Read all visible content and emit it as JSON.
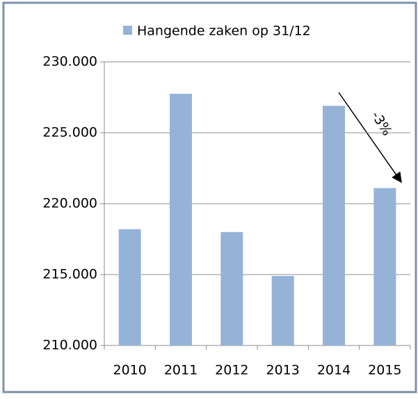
{
  "chart_data": {
    "type": "bar",
    "categories": [
      "2010",
      "2011",
      "2012",
      "2013",
      "2014",
      "2015"
    ],
    "series": [
      {
        "name": "Hangende zaken op 31/12",
        "color": "#95b3d7",
        "values": [
          218200,
          227750,
          218000,
          214900,
          226900,
          221100
        ]
      }
    ],
    "ylim": [
      210000,
      230000
    ],
    "yticks": [
      {
        "value": 210000,
        "label": "210.000"
      },
      {
        "value": 215000,
        "label": "215.000"
      },
      {
        "value": 220000,
        "label": "220.000"
      },
      {
        "value": 225000,
        "label": "225.000"
      },
      {
        "value": 230000,
        "label": "230.000"
      }
    ],
    "grid": true,
    "annotation": "-3%"
  }
}
